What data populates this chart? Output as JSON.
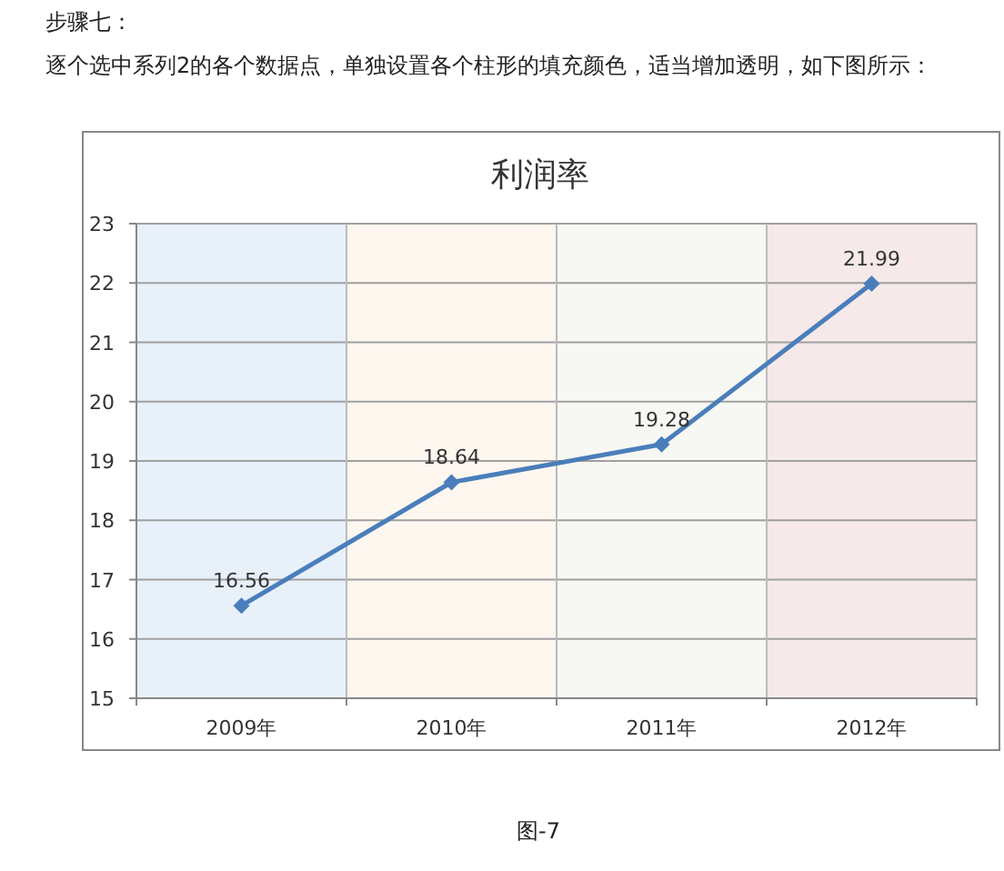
{
  "chart_data": {
    "type": "line",
    "title": "利润率",
    "annotations": [
      "步骤七：",
      "逐个选中系列2的各个数据点，单独设置各个柱形的填充颜色，适当增加透明，如下图所示：",
      "图-7"
    ],
    "categories": [
      "2009年",
      "2010年",
      "2011年",
      "2012年"
    ],
    "series": [
      {
        "type": "bar",
        "colors": [
          "#e8f0fa",
          "#fdf7f0",
          "#f7f8f3",
          "#f5e9e9"
        ],
        "values": [
          23,
          23,
          23,
          23
        ]
      },
      {
        "color": "#4a7ebb",
        "values": [
          16.56,
          18.64,
          19.28,
          21.99
        ],
        "value_labels": [
          "16.56",
          "18.64",
          "19.28",
          "21.99"
        ]
      }
    ],
    "ylim": [
      15,
      23
    ],
    "yticks": [
      15,
      16,
      17,
      18,
      19,
      20,
      21,
      22,
      23
    ],
    "grid": true,
    "marker": "diamond",
    "line_style": "solid"
  }
}
